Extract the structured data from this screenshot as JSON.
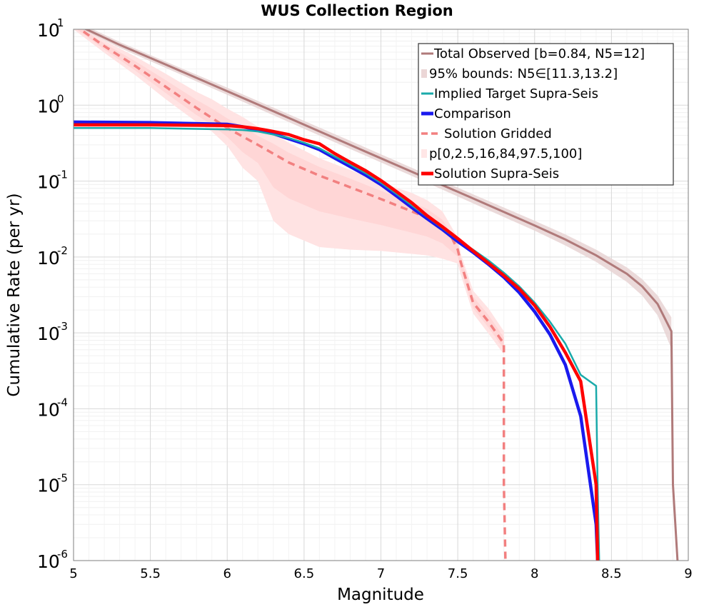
{
  "chart_data": {
    "type": "line",
    "title": "WUS Collection Region",
    "xlabel": "Magnitude",
    "ylabel": "Cumulative Rate (per yr)",
    "xlim": [
      5,
      9
    ],
    "ylim_log10": [
      -6,
      1
    ],
    "y_scale": "log",
    "grid": true,
    "legend_position": "top-right",
    "x_ticks": [
      "5",
      "5.5",
      "6",
      "6.5",
      "7",
      "7.5",
      "8",
      "8.5",
      "9"
    ],
    "y_ticks": [
      {
        "base": "10",
        "exp": "1"
      },
      {
        "base": "10",
        "exp": "0"
      },
      {
        "base": "10",
        "exp": "-1"
      },
      {
        "base": "10",
        "exp": "-2"
      },
      {
        "base": "10",
        "exp": "-3"
      },
      {
        "base": "10",
        "exp": "-4"
      },
      {
        "base": "10",
        "exp": "-5"
      },
      {
        "base": "10",
        "exp": "-6"
      }
    ],
    "legend": [
      {
        "label": "Total Observed [b=0.84, N5=12]",
        "color": "#b07a7a",
        "style": "line"
      },
      {
        "label": "95% bounds: N5∈[11.3,13.2]",
        "color": "#ebd6d6",
        "style": "band"
      },
      {
        "label": "Implied Target Supra-Seis",
        "color": "#1aaaaa",
        "style": "line"
      },
      {
        "label": "Comparison",
        "color": "#1a1aee",
        "style": "thick"
      },
      {
        "label": "Solution Gridded",
        "color": "#f28080",
        "style": "dashed"
      },
      {
        "label": "p[0,2.5,16,84,97.5,100]",
        "color": "#ffe6e6",
        "style": "band"
      },
      {
        "label": "Solution Supra-Seis",
        "color": "#ff0000",
        "style": "thick"
      }
    ],
    "series": [
      {
        "name": "Total Observed [b=0.84, N5=12]",
        "color": "#b07a7a",
        "x": [
          5.0,
          5.3,
          5.6,
          6.0,
          6.4,
          6.8,
          7.2,
          7.6,
          8.0,
          8.2,
          8.4,
          8.6,
          8.7,
          8.8,
          8.89,
          8.9,
          8.93
        ],
        "y": [
          12.0,
          6.23,
          3.43,
          1.53,
          0.68,
          0.3,
          0.133,
          0.059,
          0.026,
          0.017,
          0.0105,
          0.006,
          0.0041,
          0.0024,
          0.00105,
          1e-05,
          1e-06
        ]
      },
      {
        "name": "95% bounds: N5∈[11.3,13.2]",
        "color": "#ebd6d6",
        "x": [
          5.0,
          5.3,
          5.6,
          6.0,
          6.4,
          6.8,
          7.2,
          7.6,
          8.0,
          8.2,
          8.4,
          8.6,
          8.7,
          8.8,
          8.89
        ],
        "y_low": [
          11.3,
          5.7,
          3.1,
          1.37,
          0.6,
          0.265,
          0.117,
          0.051,
          0.0222,
          0.0142,
          0.0086,
          0.0047,
          0.0031,
          0.0017,
          0.00062
        ],
        "y_high": [
          13.2,
          6.8,
          3.75,
          1.7,
          0.76,
          0.34,
          0.15,
          0.067,
          0.03,
          0.0198,
          0.0125,
          0.0073,
          0.0051,
          0.0031,
          0.0016
        ]
      },
      {
        "name": "Implied Target Supra-Seis",
        "color": "#1aaaaa",
        "x": [
          5.0,
          5.5,
          6.0,
          6.1,
          6.2,
          6.3,
          6.4,
          6.5,
          6.6,
          6.7,
          6.8,
          6.9,
          7.0,
          7.1,
          7.2,
          7.3,
          7.4,
          7.5,
          7.6,
          7.7,
          7.8,
          7.9,
          8.0,
          8.1,
          8.2,
          8.3,
          8.4,
          8.41,
          8.42
        ],
        "y": [
          0.5,
          0.5,
          0.48,
          0.47,
          0.45,
          0.41,
          0.37,
          0.32,
          0.27,
          0.21,
          0.165,
          0.127,
          0.095,
          0.068,
          0.048,
          0.034,
          0.024,
          0.017,
          0.0125,
          0.009,
          0.0062,
          0.0041,
          0.0025,
          0.0014,
          0.00072,
          0.00028,
          0.0002,
          1e-05,
          1e-06
        ]
      },
      {
        "name": "Comparison",
        "color": "#1a1aee",
        "x": [
          5.0,
          5.5,
          6.0,
          6.1,
          6.2,
          6.3,
          6.4,
          6.5,
          6.6,
          6.7,
          6.8,
          6.9,
          7.0,
          7.1,
          7.2,
          7.3,
          7.4,
          7.5,
          7.6,
          7.7,
          7.8,
          7.9,
          8.0,
          8.1,
          8.2,
          8.3,
          8.4,
          8.41
        ],
        "y": [
          0.6,
          0.59,
          0.56,
          0.52,
          0.47,
          0.42,
          0.36,
          0.31,
          0.26,
          0.2,
          0.155,
          0.12,
          0.09,
          0.064,
          0.045,
          0.032,
          0.023,
          0.016,
          0.0115,
          0.008,
          0.0054,
          0.0034,
          0.0019,
          0.00095,
          0.00038,
          8e-05,
          3e-06,
          1e-06
        ]
      },
      {
        "name": "Solution Gridded",
        "color": "#f28080",
        "x": [
          5.0,
          5.2,
          5.4,
          5.6,
          5.8,
          6.0,
          6.2,
          6.4,
          6.6,
          6.8,
          7.0,
          7.2,
          7.3,
          7.4,
          7.45,
          7.5,
          7.52,
          7.6,
          7.7,
          7.8,
          7.8,
          7.81
        ],
        "y": [
          11.5,
          6.0,
          3.3,
          1.75,
          0.92,
          0.5,
          0.3,
          0.176,
          0.118,
          0.083,
          0.058,
          0.04,
          0.033,
          0.024,
          0.02,
          0.0125,
          0.0085,
          0.0025,
          0.0014,
          0.00072,
          1e-05,
          1e-06
        ]
      },
      {
        "name": "p[0,2.5,16,84,97.5,100]",
        "color": "#ffe6e6",
        "x": [
          5.0,
          5.2,
          5.4,
          5.6,
          5.8,
          5.9,
          6.0,
          6.1,
          6.2,
          6.3,
          6.4,
          6.6,
          6.8,
          7.0,
          7.2,
          7.3,
          7.4,
          7.5,
          7.52,
          7.6,
          7.7,
          7.8
        ],
        "y_low": [
          10.0,
          4.9,
          2.5,
          1.2,
          0.6,
          0.45,
          0.29,
          0.15,
          0.1,
          0.03,
          0.02,
          0.0135,
          0.0125,
          0.012,
          0.011,
          0.0105,
          0.0095,
          0.0082,
          0.0058,
          0.0018,
          0.00098,
          0.00052
        ],
        "y_high": [
          12.5,
          7.1,
          4.4,
          2.6,
          1.5,
          1.2,
          0.9,
          0.7,
          0.52,
          0.42,
          0.32,
          0.2,
          0.14,
          0.095,
          0.07,
          0.056,
          0.04,
          0.018,
          0.011,
          0.0036,
          0.0021,
          0.00105
        ]
      },
      {
        "name": "Solution Supra-Seis",
        "color": "#ff0000",
        "x": [
          5.0,
          5.5,
          6.0,
          6.1,
          6.2,
          6.3,
          6.4,
          6.5,
          6.6,
          6.7,
          6.8,
          6.9,
          7.0,
          7.1,
          7.2,
          7.3,
          7.4,
          7.5,
          7.6,
          7.7,
          7.8,
          7.9,
          8.0,
          8.1,
          8.2,
          8.3,
          8.4,
          8.41
        ],
        "y": [
          0.55,
          0.55,
          0.54,
          0.52,
          0.49,
          0.45,
          0.41,
          0.35,
          0.31,
          0.23,
          0.177,
          0.137,
          0.102,
          0.073,
          0.052,
          0.035,
          0.025,
          0.0175,
          0.012,
          0.0083,
          0.0057,
          0.0038,
          0.0023,
          0.0012,
          0.00055,
          0.00023,
          1e-05,
          1e-06
        ]
      }
    ]
  }
}
